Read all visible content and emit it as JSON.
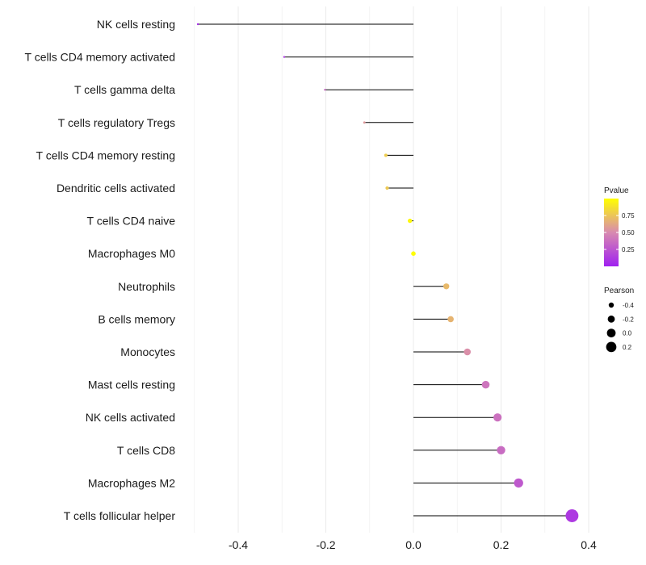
{
  "chart_data": {
    "type": "lollipop",
    "title": "",
    "xlabel": "",
    "ylabel": "",
    "xlim": [
      -0.5,
      0.44
    ],
    "x_ticks": [
      -0.4,
      -0.2,
      0.0,
      0.2,
      0.4
    ],
    "x_tick_labels": [
      "-0.4",
      "-0.2",
      "0.0",
      "0.2",
      "0.4"
    ],
    "categories": [
      "NK cells resting",
      "T cells CD4 memory activated",
      "T cells gamma delta",
      "T cells regulatory  Tregs ",
      "T cells CD4 memory resting",
      "Dendritic cells activated",
      "T cells CD4 naive",
      "Macrophages M0",
      "Neutrophils",
      "B cells memory",
      "Monocytes",
      "Mast cells resting",
      "NK cells activated",
      "T cells CD8",
      "Macrophages M2",
      "T cells follicular helper"
    ],
    "pearson": [
      -0.492,
      -0.295,
      -0.202,
      -0.112,
      -0.063,
      -0.06,
      -0.008,
      0.0,
      0.075,
      0.085,
      0.123,
      0.165,
      0.192,
      0.2,
      0.24,
      0.362
    ],
    "pvalue": [
      0.05,
      0.12,
      0.35,
      0.56,
      0.78,
      0.77,
      0.97,
      0.99,
      0.7,
      0.68,
      0.52,
      0.4,
      0.38,
      0.36,
      0.27,
      0.12
    ],
    "color_legend": {
      "title": "Pvalue",
      "ticks": [
        0.25,
        0.5,
        0.75
      ],
      "tick_labels": [
        "0.25",
        "0.50",
        "0.75"
      ],
      "range": [
        0.0,
        1.0
      ],
      "color_low": "#a020f0",
      "color_mid": "#d88ab0",
      "color_high": "#ffff00"
    },
    "size_legend": {
      "title": "Pearson",
      "values": [
        -0.4,
        -0.2,
        0.0,
        0.2
      ],
      "labels": [
        "-0.4",
        "-0.2",
        "0.0",
        "0.2"
      ]
    },
    "grid": true,
    "legend_position": "right"
  }
}
